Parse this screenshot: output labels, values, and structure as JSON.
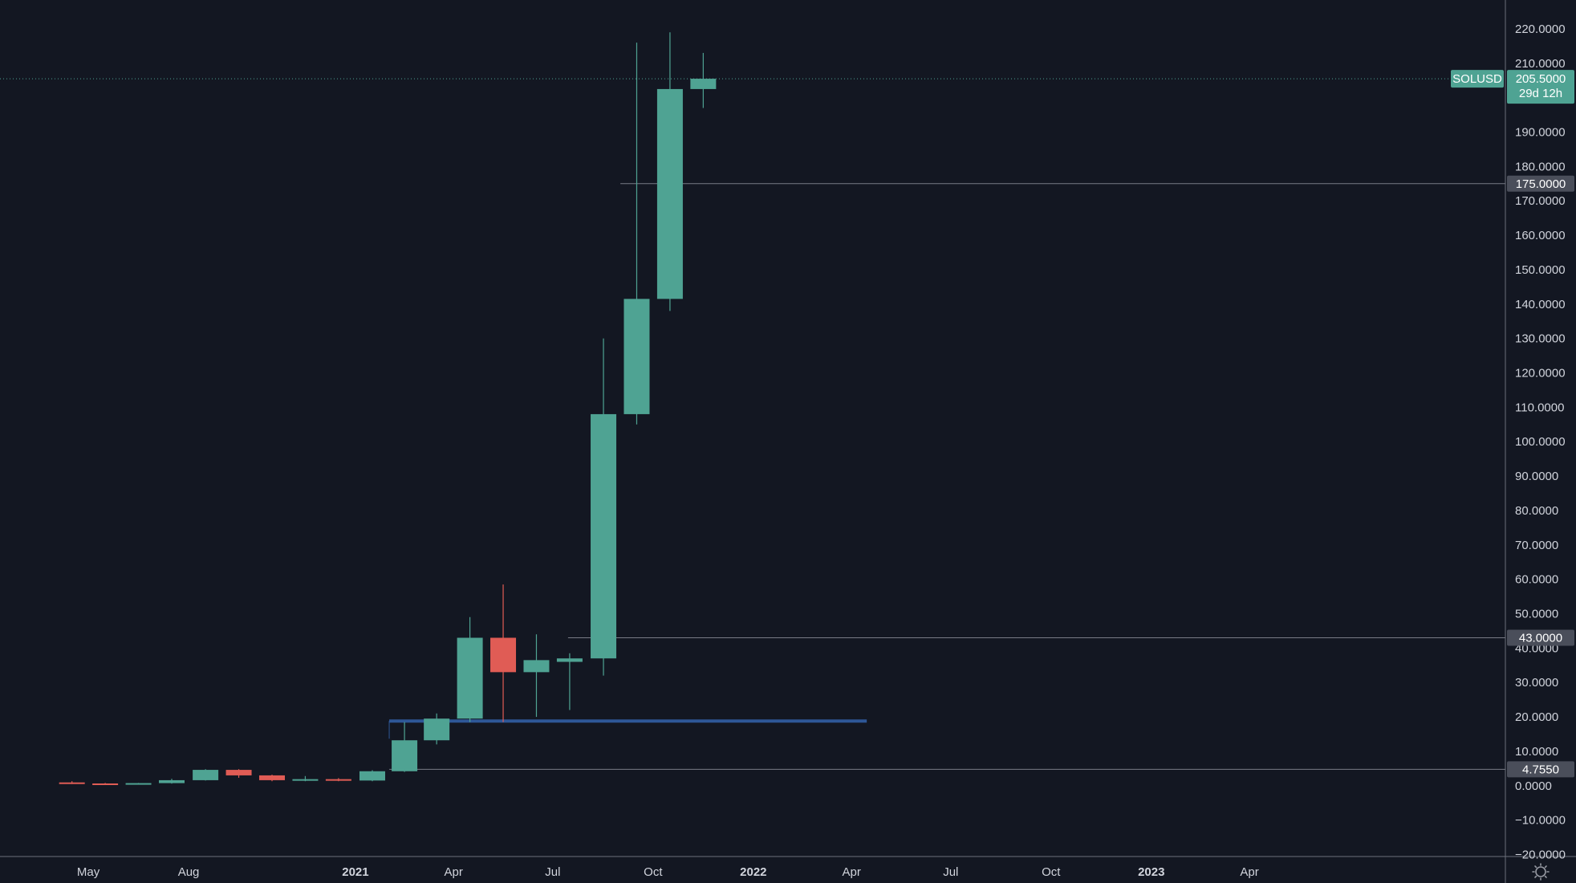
{
  "chart_data": {
    "type": "candlestick",
    "symbol": "SOLUSD",
    "interval": "monthly",
    "y_range": [
      -20,
      225
    ],
    "y_ticks": [
      220,
      210,
      190,
      180,
      170,
      160,
      150,
      140,
      130,
      120,
      110,
      100,
      90,
      80,
      70,
      60,
      50,
      40,
      30,
      20,
      10,
      0,
      -10,
      -20
    ],
    "x_range": [
      "2020-02-10",
      "2023-06-20"
    ],
    "x_ticks": [
      {
        "label": "May",
        "date": "2020-05-01",
        "year": false
      },
      {
        "label": "Aug",
        "date": "2020-08-01",
        "year": false
      },
      {
        "label": "2021",
        "date": "2021-01-01",
        "year": true
      },
      {
        "label": "Apr",
        "date": "2021-04-01",
        "year": false
      },
      {
        "label": "Jul",
        "date": "2021-07-01",
        "year": false
      },
      {
        "label": "Oct",
        "date": "2021-10-01",
        "year": false
      },
      {
        "label": "2022",
        "date": "2022-01-01",
        "year": true
      },
      {
        "label": "Apr",
        "date": "2022-04-01",
        "year": false
      },
      {
        "label": "Jul",
        "date": "2022-07-01",
        "year": false
      },
      {
        "label": "Oct",
        "date": "2022-10-01",
        "year": false
      },
      {
        "label": "2023",
        "date": "2023-01-01",
        "year": true
      },
      {
        "label": "Apr",
        "date": "2023-04-01",
        "year": false
      }
    ],
    "candles": [
      {
        "date": "2020-04-01",
        "open": 0.95,
        "high": 1.3,
        "low": 0.5,
        "close": 0.65
      },
      {
        "date": "2020-05-01",
        "open": 0.65,
        "high": 0.8,
        "low": 0.5,
        "close": 0.6
      },
      {
        "date": "2020-06-01",
        "open": 0.6,
        "high": 0.8,
        "low": 0.5,
        "close": 0.75
      },
      {
        "date": "2020-07-01",
        "open": 0.75,
        "high": 2.0,
        "low": 0.6,
        "close": 1.6
      },
      {
        "date": "2020-08-01",
        "open": 1.6,
        "high": 4.8,
        "low": 1.5,
        "close": 4.6
      },
      {
        "date": "2020-09-01",
        "open": 4.6,
        "high": 4.8,
        "low": 2.3,
        "close": 3.0
      },
      {
        "date": "2020-10-01",
        "open": 3.0,
        "high": 3.2,
        "low": 1.3,
        "close": 1.6
      },
      {
        "date": "2020-11-01",
        "open": 1.6,
        "high": 2.8,
        "low": 1.3,
        "close": 1.9
      },
      {
        "date": "2020-12-01",
        "open": 1.9,
        "high": 2.2,
        "low": 1.3,
        "close": 1.5
      },
      {
        "date": "2021-01-01",
        "open": 1.5,
        "high": 4.5,
        "low": 1.3,
        "close": 4.2
      },
      {
        "date": "2021-02-01",
        "open": 4.2,
        "high": 18.5,
        "low": 4.0,
        "close": 13.2
      },
      {
        "date": "2021-03-01",
        "open": 13.2,
        "high": 21.0,
        "low": 12.0,
        "close": 19.5
      },
      {
        "date": "2021-04-01",
        "open": 19.5,
        "high": 49.0,
        "low": 18.5,
        "close": 43.0
      },
      {
        "date": "2021-05-01",
        "open": 43.0,
        "high": 58.5,
        "low": 18.5,
        "close": 33.0
      },
      {
        "date": "2021-06-01",
        "open": 33.0,
        "high": 44.0,
        "low": 20.0,
        "close": 36.5
      },
      {
        "date": "2021-07-01",
        "open": 36.0,
        "high": 38.5,
        "low": 22.0,
        "close": 37.0
      },
      {
        "date": "2021-08-01",
        "open": 37.0,
        "high": 130.0,
        "low": 32.0,
        "close": 108.0
      },
      {
        "date": "2021-09-01",
        "open": 108.0,
        "high": 216.0,
        "low": 105.0,
        "close": 141.5
      },
      {
        "date": "2021-10-01",
        "open": 141.5,
        "high": 219.0,
        "low": 138.0,
        "close": 202.5
      },
      {
        "date": "2021-11-01",
        "open": 202.5,
        "high": 213.0,
        "low": 197.0,
        "close": 205.5
      }
    ],
    "horizontal_levels": [
      {
        "value": 175.0,
        "label": "175.0000",
        "from": "2021-09-01"
      },
      {
        "value": 43.0,
        "label": "43.0000",
        "from": "2021-07-15"
      },
      {
        "value": 4.755,
        "label": "4.7550",
        "from": "2021-02-01"
      }
    ],
    "support_line": {
      "value": 18.8,
      "from": "2021-02-01",
      "to": "2022-04-15",
      "color": "#2e5797"
    },
    "last_price": {
      "value": 205.5,
      "label": "205.5000",
      "countdown": "29d 12h",
      "color": "#4fa393"
    },
    "colors": {
      "up": "#4fa393",
      "down": "#e05c55",
      "background": "#131722",
      "text": "#d1d4dc",
      "level_tag": "#4a4e5a",
      "axis_line": "#6b6f7a"
    }
  }
}
